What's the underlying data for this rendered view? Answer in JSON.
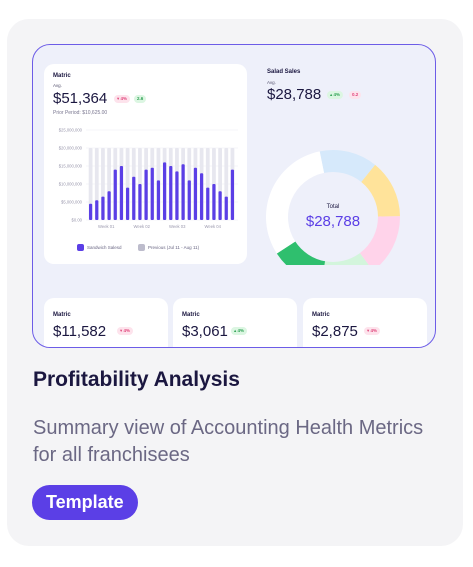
{
  "card": {
    "title": "Profitability Analysis",
    "description": "Summary view of Accounting Health Metrics for all franchisees",
    "tag_label": "Template"
  },
  "main_panel": {
    "title": "Matric",
    "sub": "Avg.",
    "value": "$51,364",
    "badge_red": "▾ 4%",
    "badge_green": "2.6",
    "prior_label": "Prior Period:",
    "prior_value": "$10,625.00",
    "legend_current": "Sandwich Salesd",
    "legend_previous": "Previous (Jul 11 - Aug 11)"
  },
  "chart_data": {
    "type": "bar",
    "title": "",
    "xlabel": "",
    "ylabel": "",
    "ylim": [
      0,
      25000000
    ],
    "yticks": [
      "$0.00",
      "$5,000,000",
      "$10,000,000",
      "$15,000,000",
      "$20,000,000",
      "$25,000,000"
    ],
    "week_labels": [
      "Week 01",
      "Week 02",
      "Week 03",
      "Week 04"
    ],
    "series": [
      {
        "name": "Sandwich Salesd",
        "values": [
          4500000,
          5500000,
          6500000,
          8000000,
          14000000,
          15000000,
          9000000,
          12000000,
          10000000,
          14000000,
          14500000,
          11000000,
          16000000,
          15000000,
          13500000,
          15500000,
          11000000,
          14500000,
          13000000,
          9000000,
          10000000,
          8000000,
          6500000,
          14000000
        ]
      },
      {
        "name": "Previous (Jul 11 - Aug 11)",
        "values": [
          20000000,
          20000000,
          20000000,
          20000000,
          20000000,
          20000000,
          20000000,
          20000000,
          20000000,
          20000000,
          20000000,
          20000000,
          20000000,
          20000000,
          20000000,
          20000000,
          20000000,
          20000000,
          20000000,
          20000000,
          20000000,
          20000000,
          20000000,
          20000000
        ]
      }
    ],
    "grid": true,
    "legend": "bottom"
  },
  "salad": {
    "title": "Salad Sales",
    "sub": "Avg.",
    "value": "$28,788",
    "badge_green": "▴ 4%",
    "badge_red": "0.2",
    "donut_label": "Total",
    "donut_value": "$28,788",
    "segments": [
      {
        "value": 14,
        "color": "#d6e9fb"
      },
      {
        "value": 14,
        "color": "#ffe39a"
      },
      {
        "value": 15,
        "color": "#ffd3ea"
      },
      {
        "value": 13,
        "color": "#d3f5dc"
      },
      {
        "value": 13,
        "color": "#2fbf6e"
      },
      {
        "value": 31,
        "color": "#ffffff"
      }
    ]
  },
  "small_cards": [
    {
      "label": "Matric",
      "value": "$11,582",
      "badge": "▾ 4%",
      "badge_type": "red"
    },
    {
      "label": "Matric",
      "value": "$3,061",
      "badge": "▴ 4%",
      "badge_type": "green"
    },
    {
      "label": "Matric",
      "value": "$2,875",
      "badge": "▾ 4%",
      "badge_type": "red"
    }
  ],
  "colors": {
    "accent": "#5b3fe6",
    "bar": "#5b3fe6",
    "bar_previous": "#e7e7ef"
  }
}
